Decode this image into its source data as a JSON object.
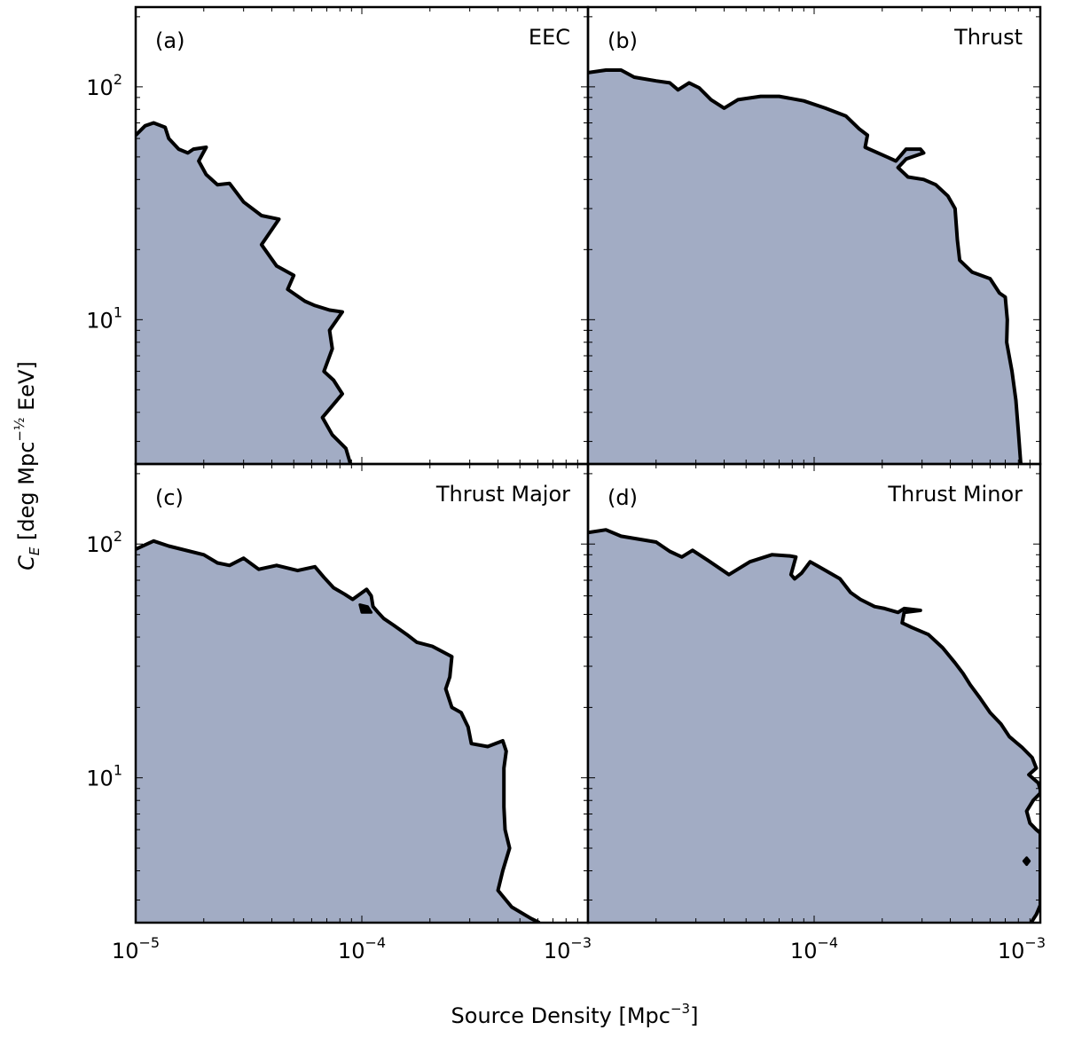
{
  "figure": {
    "xlabel": "Source Density [Mpc",
    "xlabel_exp": "−3",
    "xlabel_close": "]",
    "ylabel_sym": "C",
    "ylabel_sub": "E",
    "ylabel_rest": " [deg Mpc",
    "ylabel_exp": "−½",
    "ylabel_end": " EeV]"
  },
  "colors": {
    "fill": "#a2acc4",
    "line": "#000000",
    "frame": "#000000",
    "background": "#ffffff"
  },
  "chart_data": [
    {
      "type": "area",
      "panel_label": "(a)",
      "title": "EEC",
      "xscale": "log",
      "yscale": "log",
      "xlim": [
        1e-05,
        0.001
      ],
      "ylim": [
        2.4,
        220
      ],
      "region": [
        [
          1e-05,
          62
        ],
        [
          1.1e-05,
          68
        ],
        [
          1.2e-05,
          70
        ],
        [
          1.35e-05,
          67
        ],
        [
          1.4e-05,
          60
        ],
        [
          1.55e-05,
          54
        ],
        [
          1.7e-05,
          52
        ],
        [
          1.8e-05,
          54
        ],
        [
          2.05e-05,
          55
        ],
        [
          1.9e-05,
          48
        ],
        [
          2.05e-05,
          42
        ],
        [
          2.3e-05,
          38
        ],
        [
          2.6e-05,
          38.5
        ],
        [
          3e-05,
          32
        ],
        [
          3.6e-05,
          28
        ],
        [
          4.3e-05,
          27
        ],
        [
          3.6e-05,
          21
        ],
        [
          4.2e-05,
          17
        ],
        [
          5e-05,
          15.5
        ],
        [
          4.7e-05,
          13.5
        ],
        [
          5.6e-05,
          12
        ],
        [
          6.2e-05,
          11.5
        ],
        [
          7.2e-05,
          11
        ],
        [
          8.2e-05,
          10.8
        ],
        [
          7.2e-05,
          9
        ],
        [
          7.4e-05,
          7.5
        ],
        [
          6.8e-05,
          6
        ],
        [
          7.5e-05,
          5.5
        ],
        [
          8.2e-05,
          4.8
        ],
        [
          6.7e-05,
          3.8
        ],
        [
          7.4e-05,
          3.2
        ],
        [
          8.5e-05,
          2.8
        ],
        [
          8.8e-05,
          2.5
        ],
        [
          8.9e-05,
          2.4
        ]
      ],
      "extra_contours": []
    },
    {
      "type": "area",
      "panel_label": "(b)",
      "title": "Thrust",
      "xscale": "log",
      "yscale": "log",
      "xlim": [
        1e-05,
        0.001
      ],
      "ylim": [
        2.4,
        220
      ],
      "region": [
        [
          1e-05,
          115
        ],
        [
          1.2e-05,
          118
        ],
        [
          1.4e-05,
          118
        ],
        [
          1.6e-05,
          110
        ],
        [
          2e-05,
          106
        ],
        [
          2.3e-05,
          104
        ],
        [
          2.5e-05,
          97
        ],
        [
          2.8e-05,
          104
        ],
        [
          3.1e-05,
          99
        ],
        [
          3.5e-05,
          88
        ],
        [
          4e-05,
          81
        ],
        [
          4.6e-05,
          88
        ],
        [
          5.8e-05,
          91
        ],
        [
          7e-05,
          91
        ],
        [
          9e-05,
          87
        ],
        [
          0.000112,
          81
        ],
        [
          0.000138,
          75
        ],
        [
          0.000158,
          66
        ],
        [
          0.000172,
          62
        ],
        [
          0.000168,
          55
        ],
        [
          0.00021,
          50
        ],
        [
          0.00023,
          48
        ],
        [
          0.000255,
          54
        ],
        [
          0.000295,
          54
        ],
        [
          0.000305,
          52
        ],
        [
          0.000255,
          49
        ],
        [
          0.000235,
          45
        ],
        [
          0.00026,
          41
        ],
        [
          0.000305,
          40
        ],
        [
          0.000345,
          38
        ],
        [
          0.00039,
          34
        ],
        [
          0.00042,
          30
        ],
        [
          0.00043,
          22
        ],
        [
          0.00044,
          18
        ],
        [
          0.0005,
          16
        ],
        [
          0.0006,
          15
        ],
        [
          0.00066,
          13
        ],
        [
          0.0007,
          12.5
        ],
        [
          0.000715,
          10
        ],
        [
          0.00071,
          8
        ],
        [
          0.00075,
          6
        ],
        [
          0.00078,
          4.5
        ],
        [
          0.0008,
          3.3
        ],
        [
          0.00082,
          2.4
        ]
      ],
      "extra_contours": []
    },
    {
      "type": "area",
      "panel_label": "(c)",
      "title": "Thrust Major",
      "xscale": "log",
      "yscale": "log",
      "xlim": [
        1e-05,
        0.001
      ],
      "ylim": [
        2.4,
        220
      ],
      "region": [
        [
          1e-05,
          95
        ],
        [
          1.2e-05,
          103
        ],
        [
          1.4e-05,
          98
        ],
        [
          2e-05,
          90
        ],
        [
          2.3e-05,
          83
        ],
        [
          2.6e-05,
          81
        ],
        [
          3e-05,
          87
        ],
        [
          3.5e-05,
          78
        ],
        [
          4.2e-05,
          81
        ],
        [
          5.2e-05,
          77
        ],
        [
          6.2e-05,
          80
        ],
        [
          6.8e-05,
          72
        ],
        [
          7.5e-05,
          65
        ],
        [
          8.4e-05,
          61
        ],
        [
          9.1e-05,
          58
        ],
        [
          0.000105,
          64
        ],
        [
          0.00011,
          60
        ],
        [
          0.000112,
          54
        ],
        [
          0.000118,
          51
        ],
        [
          0.000125,
          48
        ],
        [
          0.000138,
          45
        ],
        [
          0.000158,
          41
        ],
        [
          0.000175,
          38
        ],
        [
          0.000205,
          36.5
        ],
        [
          0.00025,
          33
        ],
        [
          0.000245,
          27
        ],
        [
          0.000235,
          24
        ],
        [
          0.00025,
          20
        ],
        [
          0.000275,
          19
        ],
        [
          0.000295,
          16.5
        ],
        [
          0.000305,
          14
        ],
        [
          0.00036,
          13.6
        ],
        [
          0.00042,
          14.4
        ],
        [
          0.000435,
          13
        ],
        [
          0.000425,
          11
        ],
        [
          0.000425,
          7.5
        ],
        [
          0.00043,
          6
        ],
        [
          0.00045,
          5
        ],
        [
          0.00042,
          4
        ],
        [
          0.0004,
          3.3
        ],
        [
          0.00046,
          2.8
        ],
        [
          0.00056,
          2.5
        ],
        [
          0.00061,
          2.4
        ]
      ],
      "extra_contours": [
        {
          "kind": "island",
          "points": [
            [
              9.8e-05,
              55
            ],
            [
              0.000106,
              54
            ],
            [
              0.00011,
              51
            ],
            [
              0.0001,
              51
            ]
          ]
        }
      ]
    },
    {
      "type": "area",
      "panel_label": "(d)",
      "title": "Thrust Minor",
      "xscale": "log",
      "yscale": "log",
      "xlim": [
        1e-05,
        0.001
      ],
      "ylim": [
        2.4,
        220
      ],
      "region": [
        [
          1e-05,
          112
        ],
        [
          1.2e-05,
          115
        ],
        [
          1.4e-05,
          108
        ],
        [
          2e-05,
          102
        ],
        [
          2.3e-05,
          93
        ],
        [
          2.6e-05,
          88
        ],
        [
          2.9e-05,
          94
        ],
        [
          3.4e-05,
          85
        ],
        [
          4.2e-05,
          74
        ],
        [
          5.2e-05,
          84
        ],
        [
          6.5e-05,
          90
        ],
        [
          7.8e-05,
          89
        ],
        [
          8.3e-05,
          88
        ],
        [
          7.9e-05,
          74
        ],
        [
          8.2e-05,
          71
        ],
        [
          8.8e-05,
          75
        ],
        [
          9.6e-05,
          84
        ],
        [
          0.00011,
          78
        ],
        [
          0.00013,
          71
        ],
        [
          0.000145,
          62
        ],
        [
          0.00016,
          58
        ],
        [
          0.000185,
          54
        ],
        [
          0.000205,
          53
        ],
        [
          0.000235,
          51
        ],
        [
          0.00025,
          53
        ],
        [
          0.000295,
          52
        ],
        [
          0.00025,
          51
        ],
        [
          0.000245,
          46
        ],
        [
          0.00027,
          44
        ],
        [
          0.00032,
          41
        ],
        [
          0.00037,
          36
        ],
        [
          0.00042,
          31
        ],
        [
          0.000455,
          28
        ],
        [
          0.00049,
          25
        ],
        [
          0.00054,
          22
        ],
        [
          0.0006,
          19
        ],
        [
          0.00067,
          17
        ],
        [
          0.00073,
          15
        ],
        [
          0.00083,
          13.5
        ],
        [
          0.00092,
          12.2
        ],
        [
          0.00096,
          11
        ],
        [
          0.00089,
          10.3
        ],
        [
          0.00098,
          9.5
        ],
        [
          0.001,
          8.9
        ],
        [
          0.001,
          2.4
        ]
      ],
      "extra_contours": [
        {
          "kind": "white_hole",
          "points": [
            [
              0.001,
              8.6
            ],
            [
              0.00093,
              8.0
            ],
            [
              0.00087,
              7.2
            ],
            [
              0.0009,
              6.4
            ],
            [
              0.00096,
              6.0
            ],
            [
              0.001,
              5.8
            ]
          ]
        },
        {
          "kind": "island",
          "points": [
            [
              0.000845,
              4.4
            ],
            [
              0.00087,
              4.55
            ],
            [
              0.000895,
              4.4
            ],
            [
              0.00087,
              4.25
            ]
          ]
        },
        {
          "kind": "corner_cut",
          "points": [
            [
              0.00091,
              2.4
            ],
            [
              0.00096,
              2.6
            ],
            [
              0.001,
              2.85
            ],
            [
              0.001,
              2.4
            ]
          ]
        }
      ]
    }
  ],
  "ticks": {
    "x_label_base": "10",
    "x_labels": [
      {
        "exp": "−5",
        "value": 1e-05
      },
      {
        "exp": "−4",
        "value": 0.0001
      },
      {
        "exp": "−3",
        "value": 0.001
      }
    ],
    "y_label_base": "10",
    "y_labels": [
      {
        "exp": "2",
        "value": 100
      },
      {
        "exp": "1",
        "value": 10
      }
    ]
  }
}
